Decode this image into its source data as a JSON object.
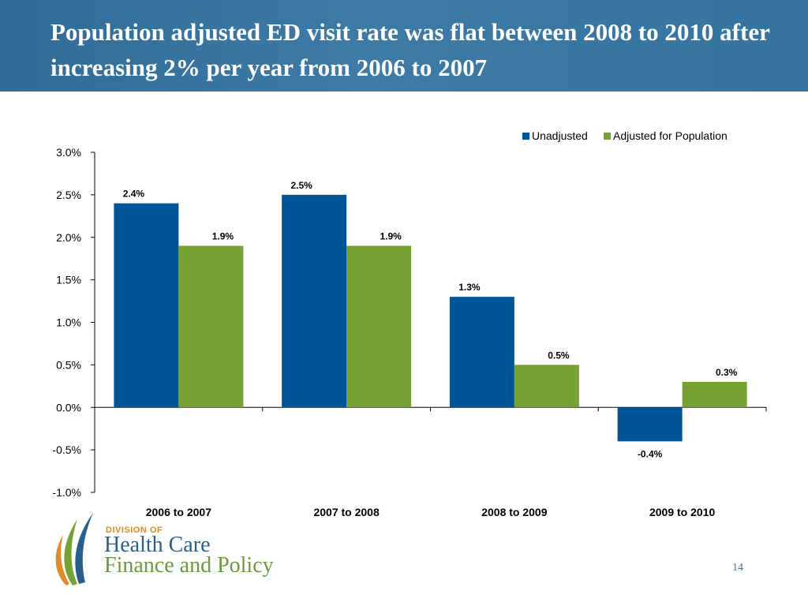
{
  "slide": {
    "title": "Population adjusted ED visit rate was flat between 2008 to 2010 after increasing 2% per year from 2006 to 2007",
    "page_number": "14"
  },
  "logo": {
    "division": "DIVISION OF",
    "line1": "Health Care",
    "line2": "Finance and Policy"
  },
  "colors": {
    "header": "#3574a0",
    "unadjusted": "#005596",
    "adjusted": "#76a233"
  },
  "chart_data": {
    "type": "bar",
    "categories": [
      "2006 to 2007",
      "2007 to 2008",
      "2008 to 2009",
      "2009 to 2010"
    ],
    "series": [
      {
        "name": "Unadjusted",
        "values": [
          2.4,
          2.5,
          1.3,
          -0.4
        ],
        "labels": [
          "2.4%",
          "2.5%",
          "1.3%",
          "-0.4%"
        ]
      },
      {
        "name": "Adjusted for Population",
        "values": [
          1.9,
          1.9,
          0.5,
          0.3
        ],
        "labels": [
          "1.9%",
          "1.9%",
          "0.5%",
          "0.3%"
        ]
      }
    ],
    "ylim": [
      -1.0,
      3.0
    ],
    "yticks": [
      3.0,
      2.5,
      2.0,
      1.5,
      1.0,
      0.5,
      0.0,
      -0.5,
      -1.0
    ],
    "ytick_labels": [
      "3.0%",
      "2.5%",
      "2.0%",
      "1.5%",
      "1.0%",
      "0.5%",
      "0.0%",
      "-0.5%",
      "-1.0%"
    ],
    "grid": false,
    "legend": "top-right"
  }
}
